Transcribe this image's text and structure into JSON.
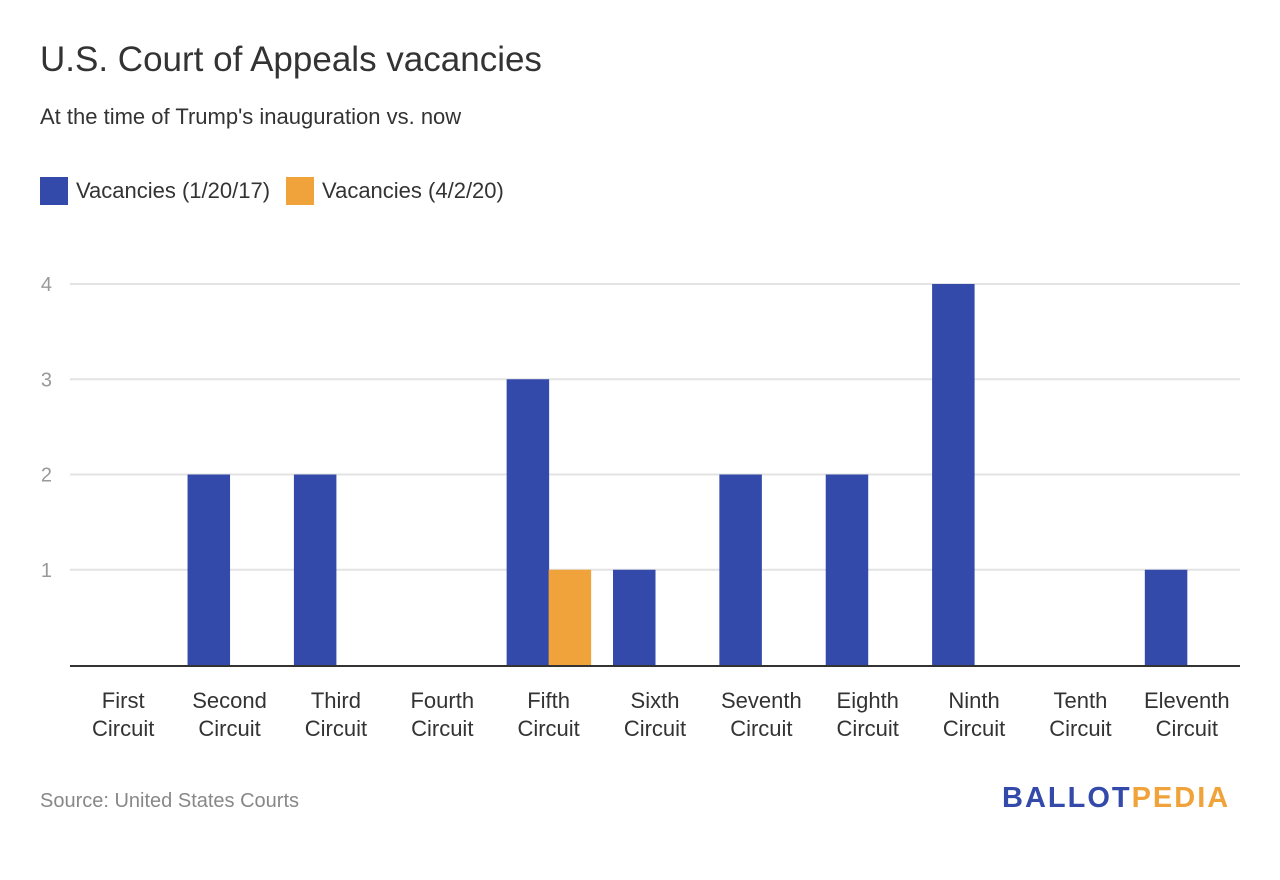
{
  "chart_data": {
    "type": "bar",
    "title": "U.S. Court of Appeals vacancies",
    "subtitle": "At the time of Trump's inauguration vs. now",
    "categories": [
      [
        "First",
        "Circuit"
      ],
      [
        "Second",
        "Circuit"
      ],
      [
        "Third",
        "Circuit"
      ],
      [
        "Fourth",
        "Circuit"
      ],
      [
        "Fifth",
        "Circuit"
      ],
      [
        "Sixth",
        "Circuit"
      ],
      [
        "Seventh",
        "Circuit"
      ],
      [
        "Eighth",
        "Circuit"
      ],
      [
        "Ninth",
        "Circuit"
      ],
      [
        "Tenth",
        "Circuit"
      ],
      [
        "Eleventh",
        "Circuit"
      ]
    ],
    "series": [
      {
        "name": "Vacancies (1/20/17)",
        "color": "#334aab",
        "values": [
          0,
          2,
          2,
          0,
          3,
          1,
          2,
          2,
          4,
          0,
          1
        ]
      },
      {
        "name": "Vacancies (4/2/20)",
        "color": "#f0a33a",
        "values": [
          0,
          0,
          0,
          0,
          1,
          0,
          0,
          0,
          0,
          0,
          0
        ]
      }
    ],
    "yticks": [
      "1",
      "2",
      "3",
      "4"
    ],
    "ylim": [
      0,
      4
    ],
    "xlabel": "",
    "ylabel": "",
    "grid": true,
    "legend_position": "top-left"
  },
  "source": "Source: United States Courts",
  "logo": {
    "part1": "BALLOT",
    "part2": "PEDIA",
    "color1": "#334aab",
    "color2": "#f0a33a"
  }
}
